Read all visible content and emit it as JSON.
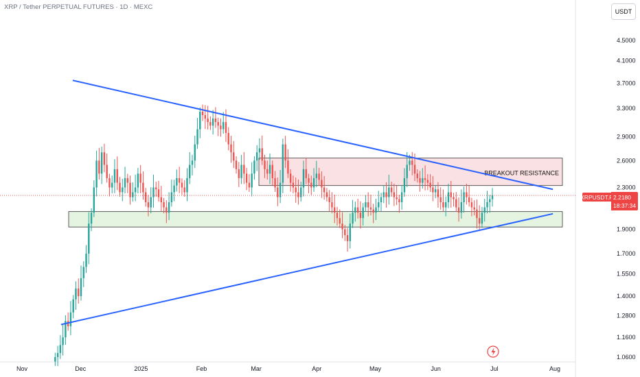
{
  "header": {
    "title": "XRP / Tether PERPETUAL FUTURES · 1D · MEXC",
    "currency": "USDT"
  },
  "price_tag": {
    "symbol": "XRPUSDT.P",
    "price": "2.2180",
    "countdown": "18:37:34"
  },
  "colors": {
    "up": "#26a69a",
    "down": "#ef5350",
    "trendline": "#2962ff",
    "resistance_zone": "#f8d7da",
    "support_zone": "#dff2dc",
    "price_line": "#ef4444"
  },
  "chart_data": {
    "type": "candlestick",
    "yscale": "log",
    "ylim": [
      1.05,
      5.0
    ],
    "yticks": [
      "4.5000",
      "4.1000",
      "3.7000",
      "3.3000",
      "2.9000",
      "2.6000",
      "2.3000",
      "1.9000",
      "1.7000",
      "1.5500",
      "1.4000",
      "1.2800",
      "1.1600",
      "1.0600"
    ],
    "xticks": [
      "Nov",
      "Dec",
      "2025",
      "Feb",
      "Mar",
      "Apr",
      "May",
      "Jun",
      "Jul",
      "Aug"
    ],
    "last_price": 2.218,
    "annotations": [
      {
        "text": "BREAKOUT RESISTANCE",
        "type": "zone",
        "from": 2.32,
        "to": 2.63
      },
      {
        "text": "",
        "type": "zone",
        "from": 1.92,
        "to": 2.06
      }
    ],
    "trendlines": [
      {
        "from": [
          "2024-11-27",
          3.75
        ],
        "to": [
          "2025-07-31",
          2.28
        ]
      },
      {
        "from": [
          "2024-11-21",
          1.23
        ],
        "to": [
          "2025-07-31",
          2.04
        ]
      }
    ],
    "series": [
      {
        "key": "ohlc",
        "note": "daily closes approximated",
        "closes": [
          1.06,
          1.08,
          1.12,
          1.16,
          1.25,
          1.22,
          1.3,
          1.38,
          1.45,
          1.4,
          1.52,
          1.6,
          1.7,
          1.95,
          2.05,
          2.3,
          2.6,
          2.45,
          2.7,
          2.55,
          2.4,
          2.3,
          2.35,
          2.5,
          2.35,
          2.25,
          2.3,
          2.4,
          2.35,
          2.2,
          2.25,
          2.3,
          2.45,
          2.35,
          2.25,
          2.15,
          2.1,
          2.2,
          2.3,
          2.28,
          2.2,
          2.15,
          2.1,
          2.05,
          2.15,
          2.25,
          2.32,
          2.4,
          2.35,
          2.3,
          2.25,
          2.4,
          2.55,
          2.6,
          2.8,
          3.0,
          3.25,
          3.2,
          3.15,
          3.1,
          3.05,
          3.15,
          3.1,
          3.05,
          3.0,
          3.1,
          2.95,
          2.8,
          2.7,
          2.6,
          2.5,
          2.4,
          2.55,
          2.45,
          2.35,
          2.3,
          2.45,
          2.6,
          2.7,
          2.75,
          2.6,
          2.5,
          2.45,
          2.55,
          2.4,
          2.3,
          2.2,
          2.35,
          2.8,
          2.6,
          2.45,
          2.35,
          2.3,
          2.25,
          2.2,
          2.3,
          2.5,
          2.4,
          2.35,
          2.3,
          2.4,
          2.45,
          2.38,
          2.3,
          2.25,
          2.2,
          2.15,
          2.1,
          2.05,
          2.0,
          1.95,
          1.9,
          1.85,
          1.8,
          1.95,
          2.05,
          2.1,
          2.05,
          2.0,
          2.1,
          2.15,
          2.1,
          2.08,
          2.05,
          2.1,
          2.15,
          2.2,
          2.25,
          2.2,
          2.3,
          2.25,
          2.2,
          2.18,
          2.15,
          2.25,
          2.4,
          2.55,
          2.6,
          2.55,
          2.45,
          2.4,
          2.35,
          2.4,
          2.38,
          2.35,
          2.3,
          2.25,
          2.28,
          2.2,
          2.15,
          2.1,
          2.15,
          2.25,
          2.2,
          2.18,
          2.1,
          2.05,
          2.15,
          2.25,
          2.2,
          2.15,
          2.1,
          2.08,
          2.0,
          1.95,
          2.05,
          2.1,
          2.15,
          2.18,
          2.22
        ]
      }
    ]
  }
}
